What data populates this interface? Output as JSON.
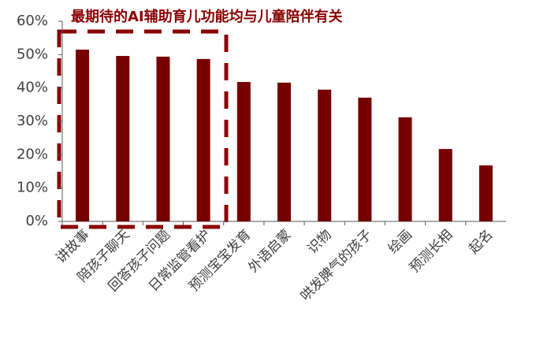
{
  "chart_data": {
    "type": "bar",
    "title": "最期待的AI辅助育儿功能均与儿童陪伴有关",
    "categories": [
      "讲故事",
      "陪孩子聊天",
      "回答孩子问题",
      "日常监管看护",
      "预测宝宝发育",
      "外语启蒙",
      "识物",
      "哄发脾气的孩子",
      "绘画",
      "预测长相",
      "起名"
    ],
    "values": [
      51.5,
      49.6,
      49.4,
      48.7,
      41.8,
      41.6,
      39.5,
      37.1,
      31.2,
      21.7,
      16.8
    ],
    "color": "#760000",
    "ylim": [
      0,
      60
    ],
    "yticks": [
      {
        "value": 0,
        "label": "0%"
      },
      {
        "value": 10,
        "label": "10%"
      },
      {
        "value": 20,
        "label": "20%"
      },
      {
        "value": 30,
        "label": "30%"
      },
      {
        "value": 40,
        "label": "40%"
      },
      {
        "value": 50,
        "label": "50%"
      },
      {
        "value": 60,
        "label": "60%"
      }
    ],
    "grid": false
  }
}
